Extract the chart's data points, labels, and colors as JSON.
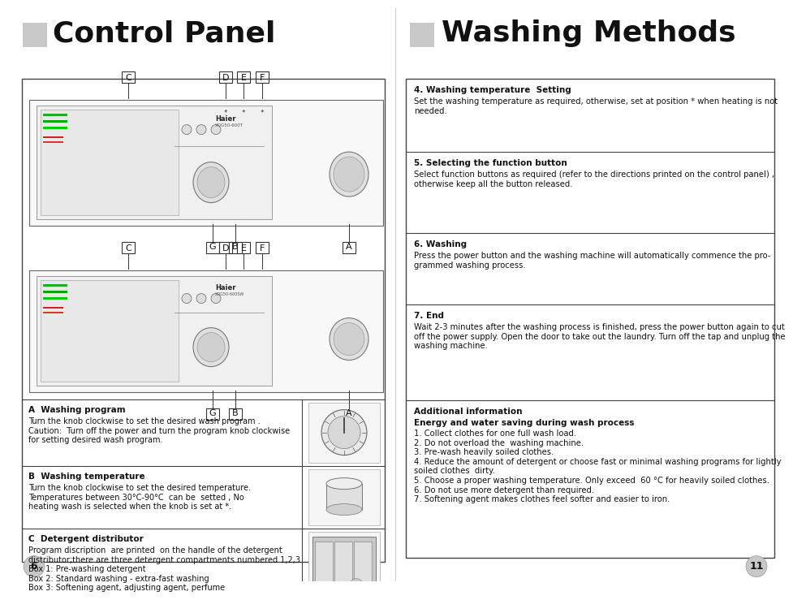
{
  "bg_color": "#ffffff",
  "left_title": "Control Panel",
  "right_title": "Washing Methods",
  "page_left": "6",
  "page_right": "11",
  "accent_color": "#c0c0c0",
  "title_color": "#111111",
  "border_color": "#444444",
  "light_border": "#888888",
  "left_panel": {
    "section_a_title": "A  Washing program",
    "section_a_text": "Turn the knob clockwise to set the desired wash program .\nCaution:  Turn off the power and turn the program knob clockwise\nfor setting desired wash program.",
    "section_b_title": "B  Washing temperature",
    "section_b_text": "Turn the knob clockwise to set the desired temperature.\nTemperatures between 30°C-90°C  can be  setted , No\nheating wash is selected when the knob is set at *.",
    "section_c_title": "C  Detergent distributor",
    "section_c_text": "Program discription  are printed  on the handle of the detergent\ndistributor;there are three detergent compartments numbered 1,2,3\nBox 1: Pre-washing detergent\nBox 2: Standard washing - extra-fast washing\nBox 3: Softening agent, adjusting agent, perfume"
  },
  "right_sections": [
    {
      "title": "4. Washing temperature  Setting",
      "body": "Set the washing temperature as required, otherwise, set at position * when heating is not\nneeded."
    },
    {
      "title": "5. Selecting the function button",
      "body": "Select function buttons as required (refer to the directions printed on the control panel) ,\notherwise keep all the button released."
    },
    {
      "title": "6. Washing",
      "body": "Press the power button and the washing machine will automatically commence the pro-\ngrammed washing process."
    },
    {
      "title": "7. End",
      "body": "Wait 2-3 minutes after the washing process is finished, press the power button again to cut\noff the power supply. Open the door to take out the laundry. Turn off the tap and unplug the\nwashing machine."
    },
    {
      "title": "Additional information",
      "body": "Energy and water saving during wash process\n1. Collect clothes for one full wash load.\n2. Do not overload the  washing machine.\n3. Pre-wash heavily soiled clothes.\n4. Reduce the amount of detergent or choose fast or minimal washing programs for lightly\nsoiled clothes  dirty.\n5. Choose a proper washing temperature. Only exceed  60 °C for heavily soiled clothes.\n6. Do not use more detergent than required.\n7. Softening agent makes clothes feel softer and easier to iron."
    }
  ]
}
